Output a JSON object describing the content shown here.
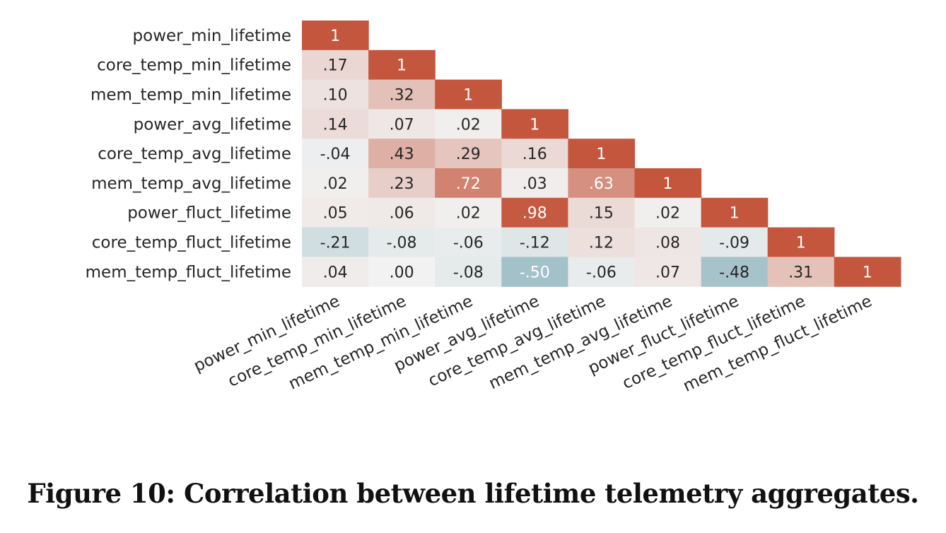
{
  "caption": "Figure 10: Correlation between lifetime telemetry aggregates.",
  "colors": {
    "positive": "#c4563e",
    "neutral": "#f2f2f2",
    "negative": "#8fb5bf",
    "text_dark": "#262626",
    "text_light": "#ffffff",
    "label": "#262626"
  },
  "chart_data": {
    "type": "heatmap",
    "title": "",
    "variables": [
      "power_min_lifetime",
      "core_temp_min_lifetime",
      "mem_temp_min_lifetime",
      "power_avg_lifetime",
      "core_temp_avg_lifetime",
      "mem_temp_avg_lifetime",
      "power_fluct_lifetime",
      "core_temp_fluct_lifetime",
      "mem_temp_fluct_lifetime"
    ],
    "matrix": [
      [
        1.0
      ],
      [
        0.17,
        1.0
      ],
      [
        0.1,
        0.32,
        1.0
      ],
      [
        0.14,
        0.07,
        0.02,
        1.0
      ],
      [
        -0.04,
        0.43,
        0.29,
        0.16,
        1.0
      ],
      [
        0.02,
        0.23,
        0.72,
        0.03,
        0.63,
        1.0
      ],
      [
        0.05,
        0.06,
        0.02,
        0.98,
        0.15,
        0.02,
        1.0
      ],
      [
        -0.21,
        -0.08,
        -0.06,
        -0.12,
        0.12,
        0.08,
        -0.09,
        1.0
      ],
      [
        0.04,
        0.0,
        -0.08,
        -0.5,
        -0.06,
        0.07,
        -0.48,
        0.31,
        1.0
      ]
    ],
    "cell_labels": [
      [
        "1"
      ],
      [
        ".17",
        "1"
      ],
      [
        ".10",
        ".32",
        "1"
      ],
      [
        ".14",
        ".07",
        ".02",
        "1"
      ],
      [
        "-.04",
        ".43",
        ".29",
        ".16",
        "1"
      ],
      [
        ".02",
        ".23",
        ".72",
        ".03",
        ".63",
        "1"
      ],
      [
        ".05",
        ".06",
        ".02",
        ".98",
        ".15",
        ".02",
        "1"
      ],
      [
        "-.21",
        "-.08",
        "-.06",
        "-.12",
        ".12",
        ".08",
        "-.09",
        "1"
      ],
      [
        ".04",
        ".00",
        "-.08",
        "-.50",
        "-.06",
        ".07",
        "-.48",
        ".31",
        "1"
      ]
    ],
    "value_range": [
      -1,
      1
    ],
    "lower_triangle": true,
    "grid": false,
    "colorbar": false,
    "x_tick_rotation": "diagonal"
  }
}
